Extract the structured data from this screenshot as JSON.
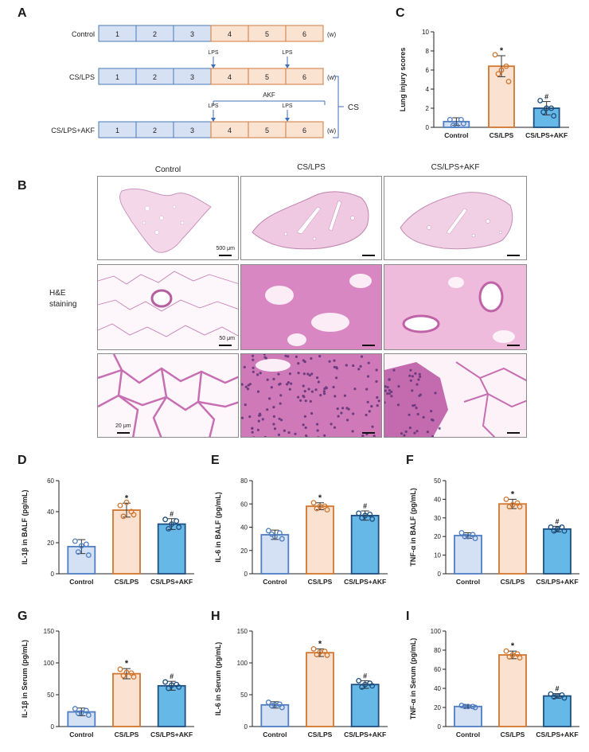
{
  "panels": {
    "A": "A",
    "B": "B",
    "C": "C",
    "D": "D",
    "E": "E",
    "F": "F",
    "G": "G",
    "H": "H",
    "I": "I"
  },
  "timeline": {
    "rows": [
      {
        "label": "Control",
        "weeks": [
          "1",
          "2",
          "3",
          "4",
          "5",
          "6"
        ],
        "unit": "(w)",
        "lps": []
      },
      {
        "label": "CS/LPS",
        "weeks": [
          "1",
          "2",
          "3",
          "4",
          "5",
          "6"
        ],
        "unit": "(w)",
        "lps": [
          "LPS",
          "LPS"
        ]
      },
      {
        "label": "CS/LPS+AKF",
        "weeks": [
          "1",
          "2",
          "3",
          "4",
          "5",
          "6"
        ],
        "unit": "(w)",
        "lps": [
          "LPS",
          "LPS"
        ]
      }
    ],
    "akf": "AKF",
    "cs": "CS",
    "colors": {
      "early_fill": "#d6e2f3",
      "early_stroke": "#4a78b8",
      "late_fill": "#fbe3d2",
      "late_stroke": "#d07a3a",
      "arrow": "#3d6fb6"
    }
  },
  "histology": {
    "columns": [
      "Control",
      "CS/LPS",
      "CS/LPS+AKF"
    ],
    "row_label_line1": "H&E",
    "row_label_line2": "staining",
    "scale_labels": [
      "500 μm",
      "50 μm",
      "20 μm"
    ]
  },
  "colors": {
    "control_fill": "#d4e0f3",
    "control_stroke": "#4f7ec2",
    "cslps_fill": "#fbe1cf",
    "cslps_stroke": "#d0762f",
    "akf_fill": "#66b8e6",
    "akf_stroke": "#1e4f80"
  },
  "chart_data": [
    {
      "id": "C",
      "type": "bar",
      "categories": [
        "Control",
        "CS/LPS",
        "CS/LPS+AKF"
      ],
      "values": [
        0.6,
        6.4,
        2.0
      ],
      "errors": [
        0.4,
        1.1,
        0.7
      ],
      "points": [
        [
          0.8,
          0.8,
          0.2,
          0.4,
          0.2
        ],
        [
          7.6,
          6.4,
          5.6,
          4.8,
          6.0
        ],
        [
          2.8,
          2.0,
          1.6,
          1.2,
          2.0
        ]
      ],
      "marks": [
        "",
        "*",
        "#"
      ],
      "ylabel": "Lung injury scores",
      "ylim": [
        0,
        10
      ],
      "yticks": [
        0,
        2,
        4,
        6,
        8,
        10
      ]
    },
    {
      "id": "D",
      "type": "bar",
      "categories": [
        "Control",
        "CS/LPS",
        "CS/LPS+AKF"
      ],
      "values": [
        17.5,
        41,
        32
      ],
      "errors": [
        4.5,
        4.5,
        3.5
      ],
      "points": [
        [
          21,
          19,
          14,
          12,
          18
        ],
        [
          44,
          40,
          37,
          38,
          46
        ],
        [
          35,
          34,
          29,
          30,
          32
        ]
      ],
      "marks": [
        "",
        "*",
        "#"
      ],
      "ylabel": "IL-1β in BALF (pg/mL)",
      "ylim": [
        0,
        60
      ],
      "yticks": [
        0,
        20,
        40,
        60
      ]
    },
    {
      "id": "E",
      "type": "bar",
      "categories": [
        "Control",
        "CS/LPS",
        "CS/LPS+AKF"
      ],
      "values": [
        33.5,
        58,
        50
      ],
      "errors": [
        4,
        3,
        4
      ],
      "points": [
        [
          37,
          35,
          34,
          30,
          32
        ],
        [
          61,
          58,
          56,
          55,
          58
        ],
        [
          52,
          51,
          48,
          47,
          50
        ]
      ],
      "marks": [
        "",
        "*",
        "#"
      ],
      "ylabel": "IL-6 in BALF (pg/mL)",
      "ylim": [
        0,
        80
      ],
      "yticks": [
        0,
        20,
        40,
        60,
        80
      ]
    },
    {
      "id": "F",
      "type": "bar",
      "categories": [
        "Control",
        "CS/LPS",
        "CS/LPS+AKF"
      ],
      "values": [
        20.5,
        37.5,
        24
      ],
      "errors": [
        1.5,
        2.5,
        1.5
      ],
      "points": [
        [
          22,
          21,
          20,
          19,
          20
        ],
        [
          40,
          38,
          36,
          36,
          37
        ],
        [
          25,
          25,
          23,
          23,
          24
        ]
      ],
      "marks": [
        "",
        "*",
        "#"
      ],
      "ylabel": "TNF-α in BALF (pg/mL)",
      "ylim": [
        0,
        50
      ],
      "yticks": [
        0,
        10,
        20,
        30,
        40,
        50
      ]
    },
    {
      "id": "G",
      "type": "bar",
      "categories": [
        "Control",
        "CS/LPS",
        "CS/LPS+AKF"
      ],
      "values": [
        23,
        83,
        64
      ],
      "errors": [
        6,
        8,
        7
      ],
      "points": [
        [
          28,
          25,
          21,
          18,
          22
        ],
        [
          90,
          84,
          80,
          78,
          85
        ],
        [
          70,
          66,
          60,
          62,
          65
        ]
      ],
      "marks": [
        "",
        "*",
        "#"
      ],
      "ylabel": "IL-1β in Serum (pg/mL)",
      "ylim": [
        0,
        150
      ],
      "yticks": [
        0,
        50,
        100,
        150
      ]
    },
    {
      "id": "H",
      "type": "bar",
      "categories": [
        "Control",
        "CS/LPS",
        "CS/LPS+AKF"
      ],
      "values": [
        34,
        116,
        66
      ],
      "errors": [
        5,
        6,
        6
      ],
      "points": [
        [
          38,
          35,
          33,
          30,
          34
        ],
        [
          122,
          118,
          113,
          112,
          117
        ],
        [
          72,
          68,
          62,
          64,
          66
        ]
      ],
      "marks": [
        "",
        "*",
        "#"
      ],
      "ylabel": "IL-6 in Serum (pg/mL)",
      "ylim": [
        0,
        150
      ],
      "yticks": [
        0,
        50,
        100,
        150
      ]
    },
    {
      "id": "I",
      "type": "bar",
      "categories": [
        "Control",
        "CS/LPS",
        "CS/LPS+AKF"
      ],
      "values": [
        21,
        75,
        32
      ],
      "errors": [
        1.5,
        4,
        2.5
      ],
      "points": [
        [
          22,
          21,
          21,
          20,
          21
        ],
        [
          79,
          76,
          73,
          72,
          75
        ],
        [
          34,
          33,
          31,
          30,
          32
        ]
      ],
      "marks": [
        "",
        "*",
        "#"
      ],
      "ylabel": "TNF-α in Serum (pg/mL)",
      "ylim": [
        0,
        100
      ],
      "yticks": [
        0,
        20,
        40,
        60,
        80,
        100
      ]
    }
  ]
}
